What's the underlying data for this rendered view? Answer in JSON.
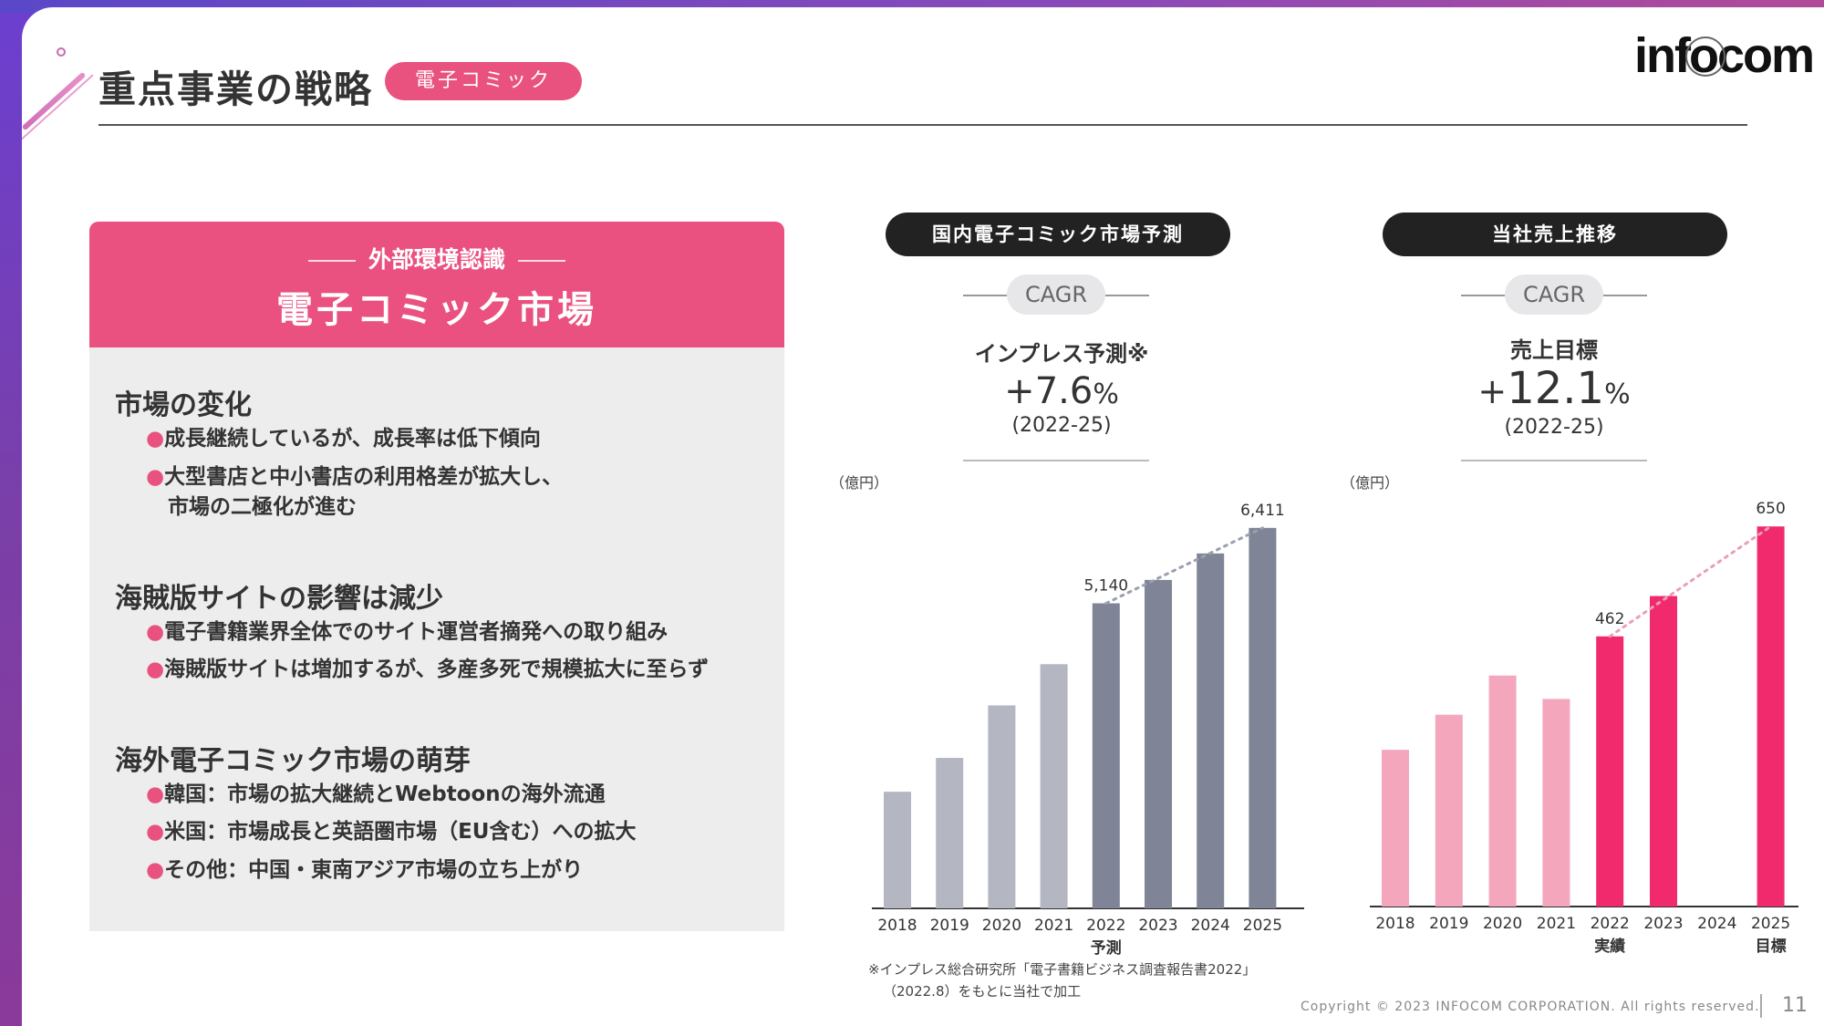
{
  "header": {
    "title": "重点事業の戦略",
    "tag": "電子コミック",
    "logo": "infocom"
  },
  "panel": {
    "subtitle": "外部環境認識",
    "title": "電子コミック市場",
    "sections": [
      {
        "title": "市場の変化",
        "bullets": [
          "成長継続しているが、成長率は低下傾向",
          "大型書店と中小書店の利用格差が拡大し、",
          "市場の二極化が進む"
        ]
      },
      {
        "title": "海賊版サイトの影響は減少",
        "bullets": [
          "電子書籍業界全体でのサイト運営者摘発への取り組み",
          "海賊版サイトは増加するが、多産多死で規模拡大に至らず"
        ]
      },
      {
        "title": "海外電子コミック市場の萌芽",
        "bullets": [
          "韓国：市場の拡大継続とWebtoonの海外流通",
          "米国：市場成長と英語圏市場（EU含む）への拡大",
          "その他：中国・東南アジア市場の立ち上がり"
        ]
      }
    ],
    "bullet_marker": "●"
  },
  "market": {
    "pill": "国内電子コミック市場予測",
    "cagr": "CAGR",
    "label": "インプレス予測※",
    "rate": "+7.6",
    "rate_unit": "%",
    "period": "(2022-25)",
    "unit": "（億円）",
    "footnote_1": "※インプレス総合研究所「電子書籍ビジネス調査報告書2022」",
    "footnote_2": "（2022.8）をもとに当社で加工"
  },
  "sales": {
    "pill": "当社売上推移",
    "cagr": "CAGR",
    "label": "売上目標",
    "rate_sign": "+",
    "rate": "12.1",
    "rate_unit": "%",
    "period": "(2022-25)",
    "unit": "（億円）"
  },
  "footer": {
    "copyright": "Copyright © 2023 INFOCOM CORPORATION. All rights reserved.",
    "page": "11"
  },
  "colors": {
    "accent_pink": "#e9527e",
    "market_actual": "#b4b6c2",
    "market_forecast": "#7f8596",
    "sales_actual": "#f4a6bd",
    "sales_highlight": "#f02a6c"
  },
  "chart_data": [
    {
      "type": "bar",
      "categories": [
        "2018",
        "2019",
        "2020",
        "2021",
        "2022",
        "2023",
        "2024",
        "2025"
      ],
      "values": [
        1965,
        2535,
        3420,
        4114,
        5140,
        5534,
        5980,
        6411
      ],
      "value_labels": {
        "2022": "5,140",
        "2025": "6,411"
      },
      "sub_labels": {
        "2022": "予測"
      },
      "highlight_from": "2022",
      "trend_from": "2022",
      "trend_to": "2025",
      "ylim": [
        0,
        6700
      ]
    },
    {
      "type": "bar",
      "categories": [
        "2018",
        "2019",
        "2020",
        "2021",
        "2022",
        "2023",
        "2024",
        "2025"
      ],
      "values": [
        268,
        328,
        395,
        355,
        462,
        531,
        null,
        650
      ],
      "value_labels": {
        "2022": "462",
        "2025": "650"
      },
      "sub_labels": {
        "2022": "実績",
        "2025": "目標"
      },
      "highlight": [
        "2022",
        "2023",
        "2025"
      ],
      "trend_from": "2022",
      "trend_to": "2025",
      "ylim": [
        0,
        680
      ]
    }
  ]
}
